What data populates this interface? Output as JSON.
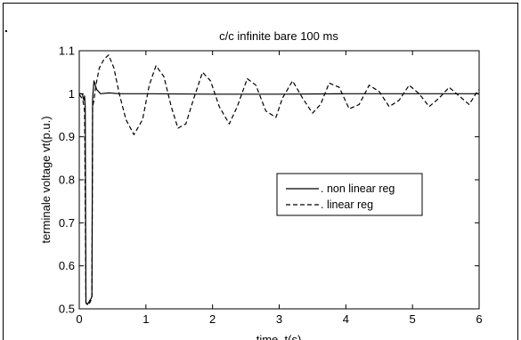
{
  "chart_data": {
    "type": "line",
    "title": "c/c infinite bare 100 ms",
    "xlabel": "time, t(s)",
    "ylabel": "terminale voltage vt(p.u.)",
    "xlim": [
      0,
      6
    ],
    "ylim": [
      0.5,
      1.1
    ],
    "x_ticks": [
      "0",
      "1",
      "2",
      "3",
      "4",
      "5",
      "6"
    ],
    "y_ticks": [
      "0.5",
      "0.6",
      "0.7",
      "0.8",
      "0.9",
      "1",
      "1.1"
    ],
    "grid": false,
    "legend_position": "right-middle",
    "series": [
      {
        "name": ". non linear reg",
        "style": "solid",
        "color": "#000000",
        "points": [
          [
            0,
            1.0
          ],
          [
            0.03,
            1.0
          ],
          [
            0.05,
            0.998
          ],
          [
            0.06,
            0.99
          ],
          [
            0.07,
            0.985
          ],
          [
            0.08,
            0.995
          ],
          [
            0.09,
            0.97
          ],
          [
            0.1,
            0.515
          ],
          [
            0.12,
            0.51
          ],
          [
            0.14,
            0.515
          ],
          [
            0.16,
            0.52
          ],
          [
            0.18,
            0.525
          ],
          [
            0.19,
            0.53
          ],
          [
            0.2,
            0.99
          ],
          [
            0.22,
            1.03
          ],
          [
            0.26,
            1.01
          ],
          [
            0.32,
            1.0
          ],
          [
            0.45,
            1.002
          ],
          [
            0.6,
            1.0
          ],
          [
            1.0,
            1.0
          ],
          [
            2.0,
            0.999
          ],
          [
            3.0,
            0.999
          ],
          [
            4.0,
            1.0
          ],
          [
            5.0,
            1.0
          ],
          [
            6.0,
            1.0
          ]
        ]
      },
      {
        "name": ". linear reg",
        "style": "dashed",
        "color": "#000000",
        "points": [
          [
            0,
            0.998
          ],
          [
            0.04,
            0.99
          ],
          [
            0.06,
            0.98
          ],
          [
            0.08,
            0.96
          ],
          [
            0.1,
            0.513
          ],
          [
            0.13,
            0.51
          ],
          [
            0.16,
            0.515
          ],
          [
            0.19,
            0.525
          ],
          [
            0.2,
            0.97
          ],
          [
            0.22,
            0.985
          ],
          [
            0.25,
            1.02
          ],
          [
            0.3,
            1.06
          ],
          [
            0.37,
            1.08
          ],
          [
            0.44,
            1.09
          ],
          [
            0.52,
            1.06
          ],
          [
            0.6,
            1.0
          ],
          [
            0.7,
            0.94
          ],
          [
            0.82,
            0.905
          ],
          [
            0.95,
            0.94
          ],
          [
            1.05,
            1.02
          ],
          [
            1.15,
            1.065
          ],
          [
            1.27,
            1.04
          ],
          [
            1.38,
            0.97
          ],
          [
            1.48,
            0.92
          ],
          [
            1.6,
            0.93
          ],
          [
            1.72,
            0.99
          ],
          [
            1.85,
            1.05
          ],
          [
            1.97,
            1.03
          ],
          [
            2.1,
            0.97
          ],
          [
            2.25,
            0.93
          ],
          [
            2.37,
            0.97
          ],
          [
            2.52,
            1.035
          ],
          [
            2.65,
            1.02
          ],
          [
            2.8,
            0.96
          ],
          [
            2.95,
            0.945
          ],
          [
            3.05,
            0.99
          ],
          [
            3.2,
            1.03
          ],
          [
            3.35,
            0.99
          ],
          [
            3.5,
            0.955
          ],
          [
            3.62,
            0.975
          ],
          [
            3.75,
            1.025
          ],
          [
            3.9,
            1.015
          ],
          [
            4.05,
            0.965
          ],
          [
            4.2,
            0.975
          ],
          [
            4.35,
            1.02
          ],
          [
            4.5,
            1.005
          ],
          [
            4.65,
            0.97
          ],
          [
            4.8,
            0.985
          ],
          [
            4.95,
            1.02
          ],
          [
            5.1,
            1.0
          ],
          [
            5.25,
            0.97
          ],
          [
            5.4,
            0.99
          ],
          [
            5.55,
            1.015
          ],
          [
            5.7,
            0.995
          ],
          [
            5.85,
            0.975
          ],
          [
            5.95,
            1.0
          ],
          [
            6.0,
            1.01
          ]
        ]
      }
    ]
  }
}
